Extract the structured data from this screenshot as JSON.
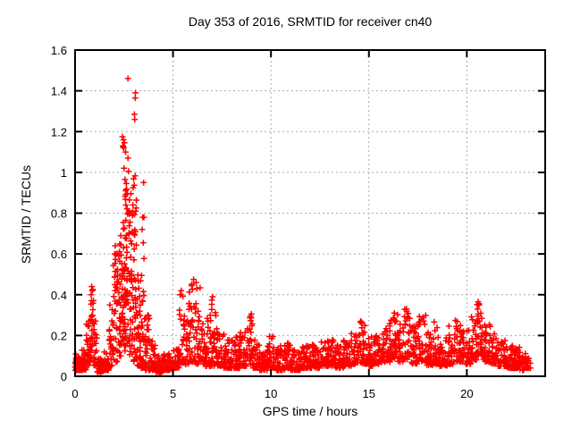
{
  "title": "Day 353 of 2016, SRMTID for receiver cn40",
  "chart_data": {
    "type": "scatter",
    "title": "Day 353 of 2016, SRMTID for receiver cn40",
    "xlabel": "GPS time / hours",
    "ylabel": "SRMTID / TECUs",
    "xlim": [
      0,
      24
    ],
    "ylim": [
      0,
      1.6
    ],
    "xticks": [
      0,
      5,
      10,
      15,
      20
    ],
    "xtick_labels": [
      "0",
      "5",
      "10",
      "15",
      "20"
    ],
    "yticks": [
      0,
      0.2,
      0.4,
      0.6,
      0.8,
      1.0,
      1.2,
      1.4,
      1.6
    ],
    "ytick_labels": [
      "0",
      "0.2",
      "0.4",
      "0.6",
      "0.8",
      "1",
      "1.2",
      "1.4",
      "1.6"
    ],
    "grid": true,
    "legend": "none",
    "marker": "plus",
    "marker_color": "#ff0000",
    "grid_color": "#aaaaaa",
    "axis_color": "#000000",
    "background_color": "#ffffff",
    "seed": 42,
    "notes": "Dense scatter of red plus markers; quiet baseline ~0.05-0.15 TECUs all day, major TID spike near hours 2-3.5 peaking 1.46, secondary activity near hours 0.8, 5.3-7.1, 9, 16-21; data ends near hour 23.2.",
    "envelope_bins": [
      [
        0.0,
        0.3,
        0.03,
        0.11,
        42,
        2.2
      ],
      [
        0.3,
        0.55,
        0.03,
        0.13,
        32,
        2.2
      ],
      [
        0.55,
        0.75,
        0.05,
        0.3,
        24,
        1.4
      ],
      [
        0.75,
        0.95,
        0.07,
        0.43,
        28,
        1.4
      ],
      [
        0.95,
        1.12,
        0.05,
        0.28,
        18,
        1.8
      ],
      [
        1.12,
        1.45,
        0.02,
        0.09,
        46,
        2.0
      ],
      [
        1.45,
        1.75,
        0.03,
        0.12,
        32,
        2.2
      ],
      [
        1.75,
        1.95,
        0.05,
        0.36,
        24,
        1.6
      ],
      [
        1.95,
        2.15,
        0.07,
        0.62,
        30,
        1.6
      ],
      [
        2.15,
        2.35,
        0.1,
        0.74,
        34,
        1.4
      ],
      [
        2.35,
        2.55,
        0.12,
        0.86,
        40,
        1.3
      ],
      [
        2.55,
        2.75,
        0.14,
        0.92,
        40,
        1.3
      ],
      [
        2.75,
        2.95,
        0.1,
        0.86,
        40,
        1.4
      ],
      [
        2.95,
        3.15,
        0.07,
        1.0,
        36,
        1.6
      ],
      [
        3.15,
        3.35,
        0.05,
        0.5,
        30,
        1.8
      ],
      [
        3.35,
        3.55,
        0.04,
        0.6,
        26,
        1.9
      ],
      [
        3.55,
        3.8,
        0.03,
        0.3,
        30,
        2.0
      ],
      [
        3.8,
        4.1,
        0.03,
        0.18,
        32,
        2.0
      ],
      [
        4.1,
        4.5,
        0.02,
        0.1,
        46,
        2.0
      ],
      [
        4.5,
        5.0,
        0.03,
        0.11,
        52,
        2.0
      ],
      [
        5.0,
        5.3,
        0.04,
        0.14,
        30,
        2.0
      ],
      [
        5.3,
        5.55,
        0.06,
        0.42,
        24,
        1.7
      ],
      [
        5.55,
        5.8,
        0.05,
        0.3,
        24,
        1.8
      ],
      [
        5.8,
        6.1,
        0.07,
        0.46,
        30,
        1.7
      ],
      [
        6.1,
        6.4,
        0.06,
        0.44,
        30,
        1.8
      ],
      [
        6.4,
        6.7,
        0.05,
        0.28,
        26,
        1.9
      ],
      [
        6.7,
        6.95,
        0.05,
        0.3,
        24,
        1.9
      ],
      [
        6.95,
        7.2,
        0.05,
        0.39,
        26,
        1.9
      ],
      [
        7.2,
        7.6,
        0.05,
        0.24,
        34,
        2.0
      ],
      [
        7.6,
        8.0,
        0.04,
        0.18,
        36,
        2.0
      ],
      [
        8.0,
        8.4,
        0.04,
        0.2,
        36,
        2.0
      ],
      [
        8.4,
        8.75,
        0.05,
        0.22,
        32,
        2.0
      ],
      [
        8.75,
        9.05,
        0.06,
        0.3,
        30,
        1.7
      ],
      [
        9.05,
        9.4,
        0.04,
        0.18,
        32,
        2.0
      ],
      [
        9.4,
        9.8,
        0.03,
        0.12,
        38,
        2.0
      ],
      [
        9.8,
        10.2,
        0.04,
        0.2,
        38,
        2.0
      ],
      [
        10.2,
        10.7,
        0.03,
        0.15,
        44,
        2.0
      ],
      [
        10.7,
        11.0,
        0.04,
        0.2,
        26,
        2.0
      ],
      [
        11.0,
        11.5,
        0.03,
        0.13,
        44,
        2.0
      ],
      [
        11.5,
        12.0,
        0.04,
        0.15,
        44,
        2.0
      ],
      [
        12.0,
        12.5,
        0.04,
        0.16,
        44,
        2.0
      ],
      [
        12.5,
        13.0,
        0.05,
        0.18,
        44,
        2.0
      ],
      [
        13.0,
        13.3,
        0.05,
        0.2,
        26,
        2.0
      ],
      [
        13.3,
        13.7,
        0.04,
        0.16,
        34,
        2.0
      ],
      [
        13.7,
        14.1,
        0.05,
        0.2,
        34,
        2.0
      ],
      [
        14.1,
        14.5,
        0.06,
        0.22,
        34,
        2.0
      ],
      [
        14.5,
        14.9,
        0.06,
        0.28,
        34,
        1.9
      ],
      [
        14.9,
        15.3,
        0.05,
        0.2,
        34,
        2.0
      ],
      [
        15.3,
        15.7,
        0.06,
        0.22,
        34,
        2.0
      ],
      [
        15.7,
        16.1,
        0.07,
        0.26,
        34,
        1.9
      ],
      [
        16.1,
        16.5,
        0.08,
        0.32,
        34,
        1.8
      ],
      [
        16.5,
        16.8,
        0.07,
        0.28,
        26,
        1.9
      ],
      [
        16.8,
        17.1,
        0.08,
        0.33,
        26,
        1.7
      ],
      [
        17.1,
        17.5,
        0.06,
        0.25,
        34,
        1.9
      ],
      [
        17.5,
        17.9,
        0.07,
        0.3,
        34,
        1.9
      ],
      [
        17.9,
        18.3,
        0.05,
        0.22,
        34,
        2.0
      ],
      [
        18.3,
        18.6,
        0.06,
        0.27,
        26,
        1.9
      ],
      [
        18.6,
        19.0,
        0.05,
        0.2,
        34,
        2.0
      ],
      [
        19.0,
        19.4,
        0.06,
        0.25,
        34,
        1.9
      ],
      [
        19.4,
        19.8,
        0.07,
        0.28,
        34,
        1.9
      ],
      [
        19.8,
        20.2,
        0.06,
        0.24,
        34,
        1.9
      ],
      [
        20.2,
        20.5,
        0.08,
        0.3,
        26,
        1.7
      ],
      [
        20.5,
        20.8,
        0.1,
        0.36,
        30,
        1.5
      ],
      [
        20.8,
        21.2,
        0.07,
        0.26,
        34,
        1.8
      ],
      [
        21.2,
        21.6,
        0.06,
        0.22,
        34,
        1.9
      ],
      [
        21.6,
        22.0,
        0.05,
        0.2,
        34,
        2.0
      ],
      [
        22.0,
        22.35,
        0.04,
        0.15,
        30,
        2.0
      ],
      [
        22.35,
        22.7,
        0.04,
        0.15,
        30,
        1.8
      ],
      [
        22.7,
        23.05,
        0.03,
        0.12,
        30,
        2.0
      ],
      [
        23.05,
        23.25,
        0.04,
        0.09,
        12,
        2.0
      ]
    ],
    "peak_points": [
      [
        2.7,
        1.46
      ],
      [
        3.08,
        1.39
      ],
      [
        3.07,
        1.365
      ],
      [
        3.03,
        1.285
      ],
      [
        3.05,
        1.26
      ],
      [
        2.42,
        1.175
      ],
      [
        2.47,
        1.16
      ],
      [
        2.52,
        1.145
      ],
      [
        2.44,
        1.13
      ],
      [
        2.46,
        1.125
      ],
      [
        2.48,
        1.12
      ],
      [
        2.58,
        1.1
      ],
      [
        2.7,
        1.07
      ],
      [
        2.5,
        1.02
      ],
      [
        2.73,
        1.005
      ],
      [
        2.55,
        0.965
      ],
      [
        2.62,
        0.945
      ],
      [
        3.5,
        0.95
      ],
      [
        2.58,
        0.91
      ],
      [
        2.85,
        0.895
      ],
      [
        2.78,
        0.865
      ],
      [
        2.95,
        0.84
      ],
      [
        3.12,
        0.825
      ],
      [
        3.1,
        0.81
      ],
      [
        3.45,
        0.78
      ],
      [
        3.52,
        0.78
      ],
      [
        3.42,
        0.72
      ],
      [
        3.48,
        0.655
      ],
      [
        2.05,
        0.64
      ],
      [
        2.02,
        0.6
      ],
      [
        6.05,
        0.475
      ],
      [
        6.18,
        0.46
      ],
      [
        5.95,
        0.445
      ],
      [
        6.22,
        0.43
      ],
      [
        0.85,
        0.44
      ],
      [
        0.88,
        0.42
      ],
      [
        0.82,
        0.4
      ],
      [
        5.42,
        0.42
      ],
      [
        5.38,
        0.4
      ],
      [
        7.02,
        0.39
      ],
      [
        6.9,
        0.3
      ],
      [
        20.58,
        0.365
      ],
      [
        20.62,
        0.35
      ],
      [
        20.55,
        0.33
      ],
      [
        16.92,
        0.33
      ],
      [
        16.3,
        0.31
      ],
      [
        9.0,
        0.305
      ],
      [
        8.95,
        0.295
      ]
    ]
  }
}
